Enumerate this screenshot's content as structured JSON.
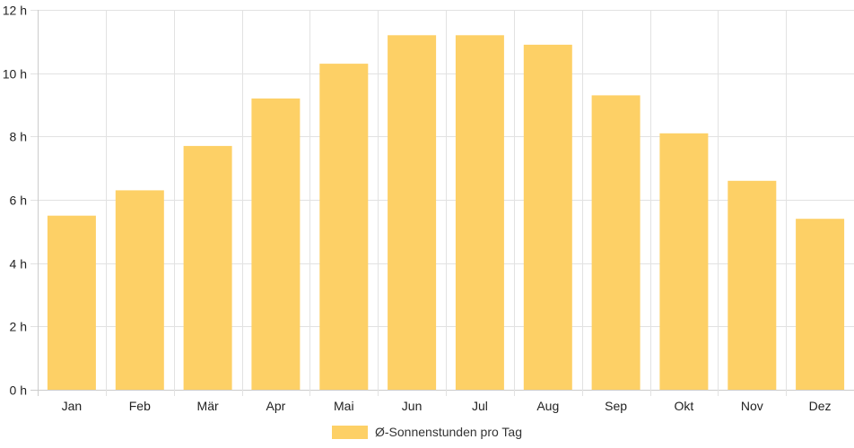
{
  "chart_data": {
    "type": "bar",
    "categories": [
      "Jan",
      "Feb",
      "Mär",
      "Apr",
      "Mai",
      "Jun",
      "Jul",
      "Aug",
      "Sep",
      "Okt",
      "Nov",
      "Dez"
    ],
    "series": [
      {
        "name": "Ø-Sonnenstunden pro Tag",
        "values": [
          5.5,
          6.3,
          7.7,
          9.2,
          10.3,
          11.2,
          11.2,
          10.9,
          9.3,
          8.1,
          6.6,
          5.4
        ],
        "color": "#fdd066"
      }
    ],
    "y_ticks": [
      "0 h",
      "2 h",
      "4 h",
      "6 h",
      "8 h",
      "10 h",
      "12 h"
    ],
    "ylim": [
      0,
      12
    ],
    "grid": true,
    "legend_position": "bottom"
  },
  "colors": {
    "bar": "#fdd066",
    "grid": "#e2e2e2",
    "axis": "#cccccc"
  }
}
